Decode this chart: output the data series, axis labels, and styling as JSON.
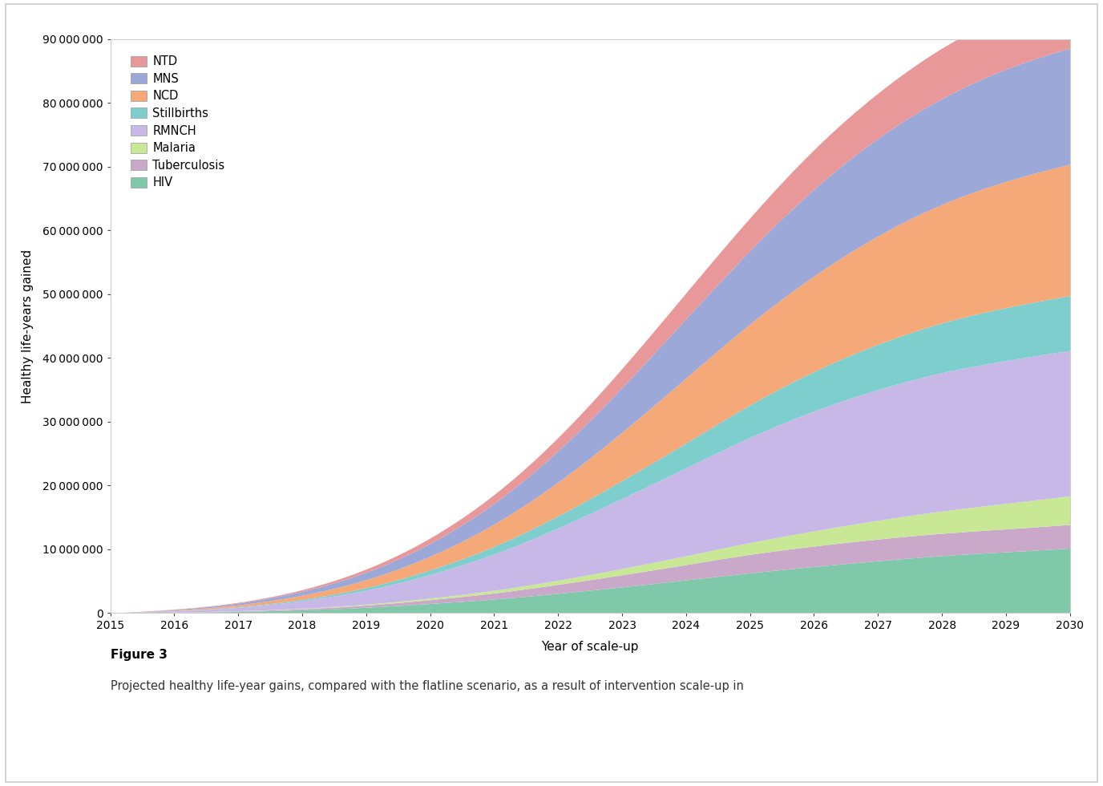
{
  "years": [
    2015,
    2016,
    2017,
    2018,
    2019,
    2020,
    2021,
    2022,
    2023,
    2024,
    2025,
    2026,
    2027,
    2028,
    2029,
    2030
  ],
  "series": {
    "HIV": [
      0,
      100000,
      250000,
      500000,
      900000,
      1500000,
      2200000,
      3100000,
      4100000,
      5200000,
      6300000,
      7300000,
      8200000,
      9000000,
      9600000,
      10200000
    ],
    "Tuberculosis": [
      0,
      30000,
      80000,
      180000,
      350000,
      600000,
      950000,
      1400000,
      1900000,
      2400000,
      2900000,
      3200000,
      3400000,
      3500000,
      3600000,
      3700000
    ],
    "Malaria": [
      0,
      10000,
      30000,
      70000,
      140000,
      250000,
      420000,
      650000,
      980000,
      1380000,
      1850000,
      2380000,
      2950000,
      3500000,
      4000000,
      4500000
    ],
    "RMNCH": [
      0,
      200000,
      550000,
      1200000,
      2200000,
      3700000,
      5700000,
      8200000,
      11000000,
      13800000,
      16500000,
      18800000,
      20500000,
      21700000,
      22400000,
      22800000
    ],
    "Stillbirths": [
      0,
      30000,
      90000,
      200000,
      400000,
      720000,
      1200000,
      1900000,
      2800000,
      3900000,
      5100000,
      6200000,
      7100000,
      7800000,
      8300000,
      8600000
    ],
    "NCD": [
      0,
      100000,
      290000,
      650000,
      1250000,
      2150000,
      3500000,
      5300000,
      7600000,
      10200000,
      12700000,
      15000000,
      17000000,
      18600000,
      19800000,
      20600000
    ],
    "MNS": [
      0,
      100000,
      280000,
      620000,
      1180000,
      2020000,
      3250000,
      4900000,
      7000000,
      9300000,
      11500000,
      13600000,
      15300000,
      16600000,
      17600000,
      18200000
    ],
    "NTD": [
      0,
      40000,
      110000,
      250000,
      480000,
      840000,
      1380000,
      2100000,
      3000000,
      4050000,
      5150000,
      6200000,
      7100000,
      7900000,
      8500000,
      8900000
    ]
  },
  "colors": {
    "HIV": "#7fc8a9",
    "Tuberculosis": "#c9a8c9",
    "Malaria": "#c8e896",
    "RMNCH": "#c8b8e8",
    "Stillbirths": "#7ecece",
    "NCD": "#f5a878",
    "MNS": "#9ba8d8",
    "NTD": "#e89898"
  },
  "legend_order": [
    "NTD",
    "MNS",
    "NCD",
    "Stillbirths",
    "RMNCH",
    "Malaria",
    "Tuberculosis",
    "HIV"
  ],
  "stack_order": [
    "HIV",
    "Tuberculosis",
    "Malaria",
    "RMNCH",
    "Stillbirths",
    "NCD",
    "MNS",
    "NTD"
  ],
  "ylabel": "Healthy life-years gained",
  "xlabel": "Year of scale-up",
  "ylim": [
    0,
    90000000
  ],
  "xlim": [
    2015,
    2030
  ],
  "yticks": [
    0,
    10000000,
    20000000,
    30000000,
    40000000,
    50000000,
    60000000,
    70000000,
    80000000,
    90000000
  ],
  "xticks": [
    2015,
    2016,
    2017,
    2018,
    2019,
    2020,
    2021,
    2022,
    2023,
    2024,
    2025,
    2026,
    2027,
    2028,
    2029,
    2030
  ],
  "figure3_label": "Figure 3",
  "caption": "Projected healthy life-year gains, compared with the flatline scenario, as a result of intervention scale-up in",
  "background_color": "#ffffff",
  "border_color": "#cccccc",
  "title_fontsize": 11,
  "axis_fontsize": 11,
  "tick_fontsize": 10,
  "legend_fontsize": 10.5
}
